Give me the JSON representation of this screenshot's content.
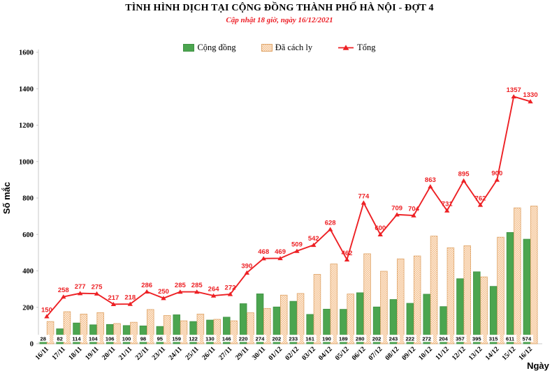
{
  "title": "TÌNH HÌNH DỊCH TẠI CỘNG ĐỒNG THÀNH PHỐ HÀ NỘI - ĐỢT 4",
  "subtitle": "Cập nhật 18 giờ, ngày 16/12/2021",
  "colors": {
    "community_green": "#4ba54f",
    "community_green_border": "#3f9143",
    "quarantine_tan_bg": "#fdf2e3",
    "quarantine_tan_hatch": "#f3bd8e",
    "quarantine_tan_border": "#dfa467",
    "total_red": "#ed2024",
    "subtitle_red": "#ed1c24",
    "axis_gray": "#c8c8c8"
  },
  "chart_data": {
    "type": "bar",
    "subtype": "clustered bars with line overlay (combo)",
    "title": "TÌNH HÌNH DỊCH TẠI CỘNG ĐỒNG THÀNH PHỐ HÀ NỘI - ĐỢT 4",
    "subtitle": "Cập nhật 18 giờ, ngày 16/12/2021",
    "xlabel": "Ngày",
    "ylabel": "Số mắc",
    "ylim": [
      0,
      1600
    ],
    "yticks": [
      0,
      200,
      400,
      600,
      800,
      1000,
      1200,
      1400,
      1600
    ],
    "grid": false,
    "legend_position": "top",
    "categories": [
      "16/11",
      "17/11",
      "18/11",
      "19/11",
      "20/11",
      "21/11",
      "22/11",
      "23/11",
      "24/11",
      "25/11",
      "26/11",
      "27/11",
      "29/11",
      "30/11",
      "01/12",
      "02/12",
      "03/12",
      "04/12",
      "05/12",
      "06/12",
      "07/12",
      "08/12",
      "09/12",
      "10/12",
      "11/12",
      "12/12",
      "13/12",
      "14/12",
      "15/12",
      "16/12"
    ],
    "series": [
      {
        "name": "Cộng đồng",
        "type": "bar",
        "color": "#4ba54f",
        "data_labels_visible": true,
        "values": [
          28,
          82,
          114,
          104,
          106,
          100,
          98,
          95,
          159,
          122,
          130,
          146,
          220,
          274,
          202,
          233,
          161,
          190,
          189,
          280,
          202,
          243,
          222,
          272,
          204,
          357,
          395,
          315,
          611,
          574
        ]
      },
      {
        "name": "Đã cách ly",
        "type": "bar",
        "fill": "checker-pattern",
        "color": "#f3bd8e",
        "data_labels_visible": false,
        "values": [
          122,
          176,
          163,
          171,
          111,
          118,
          188,
          155,
          126,
          163,
          134,
          126,
          170,
          194,
          267,
          276,
          381,
          438,
          273,
          494,
          398,
          466,
          482,
          591,
          527,
          538,
          367,
          585,
          746,
          756
        ]
      },
      {
        "name": "Tổng",
        "type": "line",
        "color": "#ed2024",
        "marker": "triangle",
        "data_labels_visible": true,
        "values": [
          150,
          258,
          277,
          275,
          217,
          218,
          286,
          250,
          285,
          285,
          264,
          272,
          390,
          468,
          469,
          509,
          542,
          628,
          462,
          774,
          600,
          709,
          704,
          863,
          731,
          895,
          762,
          900,
          1357,
          1330
        ]
      }
    ]
  }
}
